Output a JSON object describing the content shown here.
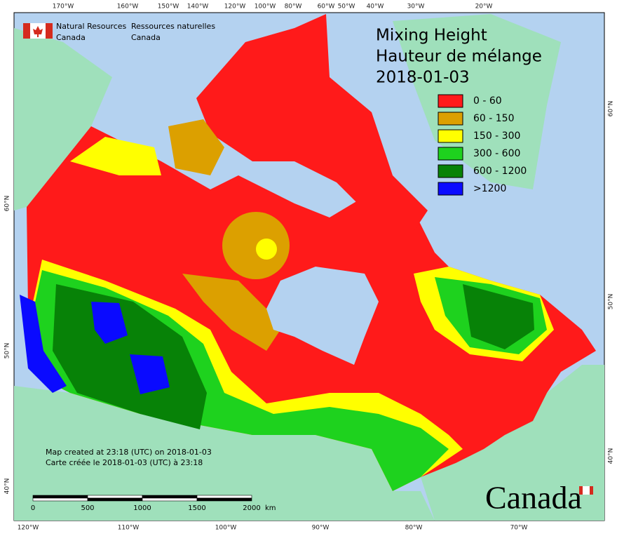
{
  "header": {
    "logo_en": [
      "Natural Resources",
      "Canada"
    ],
    "logo_fr": [
      "Ressources naturelles",
      "Canada"
    ]
  },
  "title": [
    "Mixing Height",
    "Hauteur de mélange",
    "2018-01-03"
  ],
  "legend": [
    {
      "label": "0 - 60",
      "color": "#ff1a1a"
    },
    {
      "label": "60 - 150",
      "color": "#dca000"
    },
    {
      "label": "150 - 300",
      "color": "#ffff00"
    },
    {
      "label": "300 - 600",
      "color": "#1ed21e"
    },
    {
      "label": "600 - 1200",
      "color": "#078207"
    },
    {
      "label": ">1200",
      "color": "#0a0aff"
    }
  ],
  "graticule": {
    "top": [
      "170°W",
      "160°W",
      "150°W",
      "140°W",
      "120°W",
      "100°W",
      "80°W",
      "60°W",
      "50°W",
      "40°W",
      "30°W",
      "20°W"
    ],
    "bottom": [
      "120°W",
      "110°W",
      "100°W",
      "90°W",
      "80°W",
      "70°W"
    ],
    "left": [
      "60°N",
      "50°N",
      "40°N"
    ],
    "right": [
      "60°N",
      "50°N",
      "40°N"
    ]
  },
  "scale_bar": {
    "labels": [
      "0",
      "500",
      "1000",
      "1500",
      "2000"
    ],
    "unit": "km"
  },
  "notes": [
    "Map created at 23:18 (UTC) on 2018-01-03",
    "Carte créée le 2018-01-03 (UTC) à 23:18"
  ],
  "wordmark": "Canada"
}
